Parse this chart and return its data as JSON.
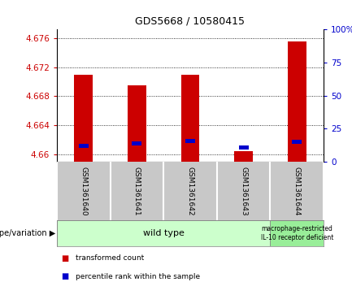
{
  "title": "GDS5668 / 10580415",
  "samples": [
    "GSM1361640",
    "GSM1361641",
    "GSM1361642",
    "GSM1361643",
    "GSM1361644"
  ],
  "red_values": [
    4.671,
    4.6695,
    4.671,
    4.6605,
    4.6755
  ],
  "blue_values": [
    4.6612,
    4.6615,
    4.6618,
    4.661,
    4.6617
  ],
  "ylim_left": [
    4.659,
    4.6772
  ],
  "ylim_right": [
    0,
    100
  ],
  "yticks_left": [
    4.66,
    4.664,
    4.668,
    4.672,
    4.676
  ],
  "ytick_labels_left": [
    "4.66",
    "4.664",
    "4.668",
    "4.672",
    "4.676"
  ],
  "yticks_right": [
    0,
    25,
    50,
    75,
    100
  ],
  "ytick_labels_right": [
    "0",
    "25",
    "50",
    "75",
    "100%"
  ],
  "red_color": "#cc0000",
  "blue_color": "#0000cc",
  "bar_width": 0.35,
  "blue_bar_width": 0.18,
  "blue_bar_height": 0.00055,
  "groups": [
    {
      "label": "wild type",
      "samples_range": [
        0,
        3
      ],
      "color": "#ccffcc"
    },
    {
      "label": "macrophage-restricted\nIL-10 receptor deficient",
      "samples_range": [
        4,
        4
      ],
      "color": "#99ee99"
    }
  ],
  "genotype_label": "genotype/variation",
  "legend": [
    {
      "color": "#cc0000",
      "label": "transformed count"
    },
    {
      "color": "#0000cc",
      "label": "percentile rank within the sample"
    }
  ],
  "bg_color": "#ffffff",
  "sample_label_bg": "#c8c8c8",
  "divider_color": "#ffffff",
  "grid_color": "#000000",
  "border_color": "#000000"
}
